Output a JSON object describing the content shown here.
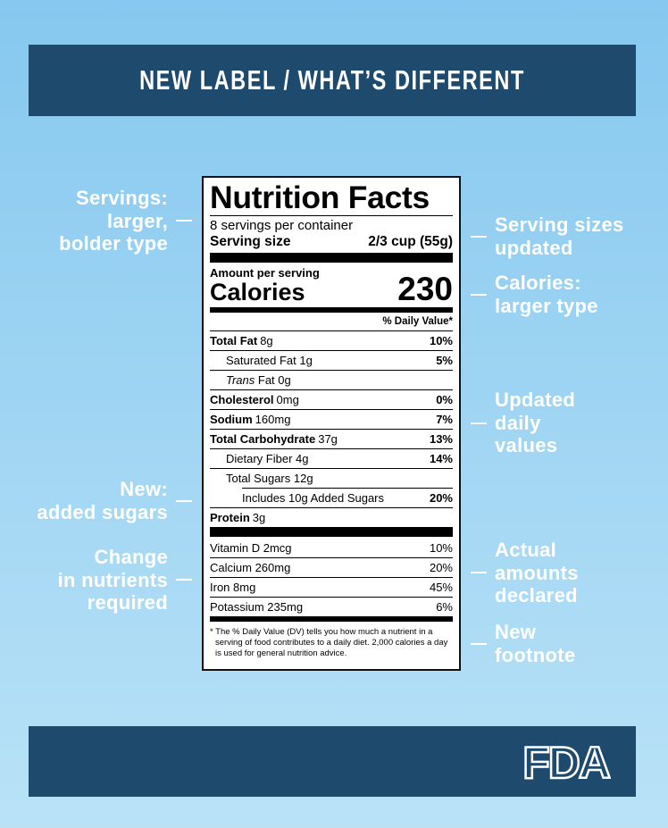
{
  "header": {
    "title": "NEW LABEL / WHAT’S DIFFERENT"
  },
  "label": {
    "title": "Nutrition Facts",
    "servings": "8 servings per container",
    "serving_size_label": "Serving size",
    "serving_size_value": "2/3 cup (55g)",
    "amount_per_serving": "Amount per serving",
    "calories_label": "Calories",
    "calories_value": "230",
    "dv_header": "% Daily Value*",
    "nutrients": [
      {
        "name": "Total Fat",
        "amount": "8g",
        "dv": "10%"
      },
      {
        "name": "Saturated Fat 1g",
        "dv": "5%"
      },
      {
        "name_italic": "Trans",
        "name": "Fat 0g"
      },
      {
        "name": "Cholesterol",
        "amount": "0mg",
        "dv": "0%"
      },
      {
        "name": "Sodium",
        "amount": "160mg",
        "dv": "7%"
      },
      {
        "name": "Total Carbohydrate",
        "amount": "37g",
        "dv": "13%"
      },
      {
        "name": "Dietary Fiber 4g",
        "dv": "14%"
      },
      {
        "name": "Total Sugars 12g"
      },
      {
        "name": "Includes 10g Added Sugars",
        "dv": "20%"
      },
      {
        "name": "Protein",
        "amount": "3g"
      }
    ],
    "vitamins": [
      {
        "name": "Vitamin D 2mcg",
        "dv": "10%"
      },
      {
        "name": "Calcium 260mg",
        "dv": "20%"
      },
      {
        "name": "Iron 8mg",
        "dv": "45%"
      },
      {
        "name": "Potassium 235mg",
        "dv": "6%"
      }
    ],
    "footnote": "* The % Daily Value (DV) tells you how much a nutrient in a serving of food contributes to a daily diet. 2,000 calories a day is used for general nutrition advice."
  },
  "annotations_left": [
    "Servings:\nlarger,\nbolder type",
    "New:\nadded sugars",
    "Change\nin nutrients\nrequired"
  ],
  "annotations_right": [
    "Serving sizes\nupdated",
    "Calories:\nlarger type",
    "Updated\ndaily\nvalues",
    "Actual\namounts\ndeclared",
    "New\nfootnote"
  ],
  "footer": {
    "logo": "FDA"
  }
}
